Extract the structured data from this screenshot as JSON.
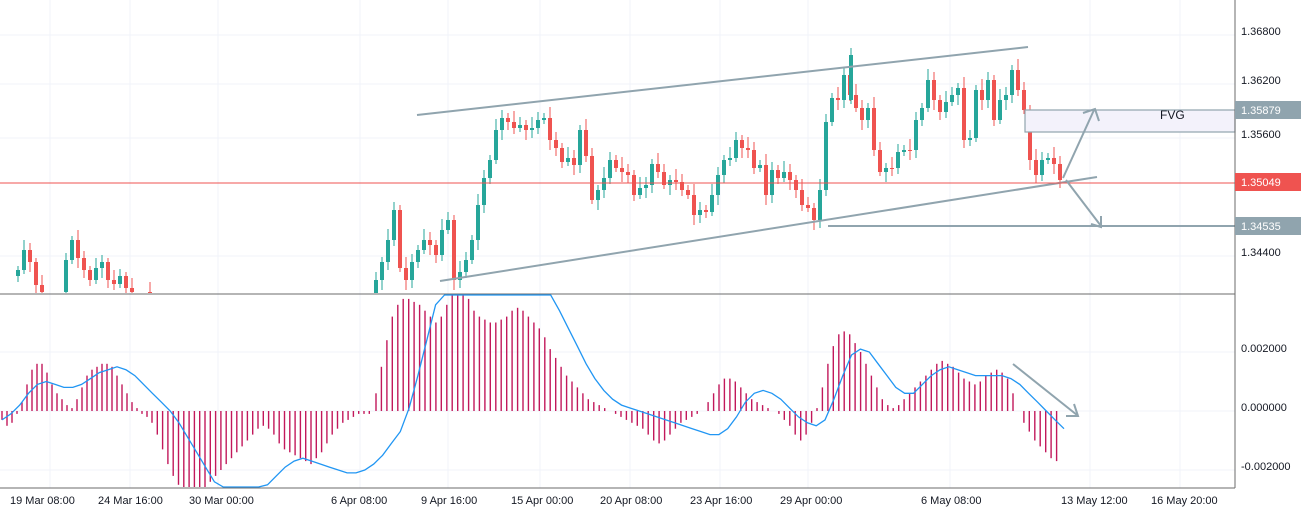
{
  "chart_data": [
    {
      "type": "candlestick",
      "title": "",
      "price_axis_ticks": [
        "1.36800",
        "1.36200",
        "1.35600",
        "1.34400"
      ],
      "time_axis_ticks": [
        "19 Mar 08:00",
        "24 Mar 16:00",
        "30 Mar 00:00",
        "6 Apr 08:00",
        "9 Apr 16:00",
        "15 Apr 00:00",
        "20 Apr 08:00",
        "23 Apr 16:00",
        "29 Apr 00:00",
        "6 May 08:00",
        "13 May 12:00",
        "16 May 20:00"
      ],
      "price_tags": [
        {
          "label": "1.35879",
          "value": 1.35879,
          "color": "#90a4ae"
        },
        {
          "label": "1.35049",
          "value": 1.35049,
          "color": "#ef5350"
        },
        {
          "label": "1.34535",
          "value": 1.34535,
          "color": "#90a4ae"
        }
      ],
      "annotation": "FVG",
      "fvg_zone": [
        1.3561,
        1.35879
      ],
      "colors": {
        "up": "#26a69a",
        "down": "#ef5350",
        "lines": "#90a4ae",
        "current_price": "#ef5350"
      },
      "candles_ohlc": [
        [
          1.3445,
          1.3452,
          1.343,
          1.344
        ],
        [
          1.3438,
          1.3458,
          1.3434,
          1.3446
        ],
        [
          1.3445,
          1.3462,
          1.344,
          1.3448
        ],
        [
          1.3448,
          1.3465,
          1.3441,
          1.3443
        ],
        [
          1.344,
          1.3446,
          1.342,
          1.3424
        ],
        [
          1.3422,
          1.3432,
          1.341,
          1.3416
        ],
        [
          1.3416,
          1.3428,
          1.3402,
          1.341
        ],
        [
          1.341,
          1.344,
          1.3404,
          1.3434
        ],
        [
          1.3434,
          1.346,
          1.343,
          1.3452
        ],
        [
          1.3452,
          1.348,
          1.3448,
          1.3474
        ],
        [
          1.3474,
          1.3498,
          1.3466,
          1.349
        ],
        [
          1.349,
          1.3502,
          1.3474,
          1.348
        ],
        [
          1.348,
          1.3488,
          1.346,
          1.3464
        ],
        [
          1.3464,
          1.3472,
          1.3452,
          1.346
        ],
        [
          1.346,
          1.347,
          1.3444,
          1.345
        ],
        [
          1.345,
          1.3458,
          1.3438,
          1.3444
        ],
        [
          1.3444,
          1.3452,
          1.343,
          1.3436
        ],
        [
          1.3436,
          1.3446,
          1.3426,
          1.344
        ],
        [
          1.344,
          1.3462,
          1.3436,
          1.3456
        ],
        [
          1.3456,
          1.3468,
          1.3444,
          1.3448
        ],
        [
          1.3448,
          1.3456,
          1.3434,
          1.3438
        ],
        [
          1.3438,
          1.3444,
          1.3424,
          1.343
        ],
        [
          1.343,
          1.3438,
          1.3418,
          1.3422
        ],
        [
          1.3422,
          1.343,
          1.341,
          1.3416
        ],
        [
          1.3416,
          1.3426,
          1.3408,
          1.342
        ],
        [
          1.342,
          1.343,
          1.3412,
          1.3418
        ],
        [
          1.3418,
          1.3424,
          1.3404,
          1.341
        ],
        [
          1.341,
          1.3418,
          1.34,
          1.3408
        ],
        [
          1.3408,
          1.3416,
          1.3398,
          1.3412
        ],
        [
          1.3412,
          1.342,
          1.3404,
          1.341
        ]
      ],
      "indicator": {
        "type": "macd",
        "axis_ticks": [
          "0.002000",
          "0.000000",
          "-0.002000"
        ],
        "axis_values": [
          0.002,
          0.0,
          -0.002
        ],
        "histogram_color": "#c2185b",
        "signal_color": "#2196f3",
        "histogram": [
          -0.0003,
          -0.0005,
          -0.0004,
          -0.0001,
          0.0003,
          0.0009,
          0.0014,
          0.0016,
          0.0016,
          0.0013,
          0.0009,
          0.0006,
          0.0004,
          0.0002,
          0.0001,
          0.0004,
          0.0008,
          0.0012,
          0.0014,
          0.0015,
          0.0016,
          0.0016,
          0.0015,
          0.0012,
          0.0009,
          0.0006,
          0.0003,
          0.0001,
          -0.0001,
          -0.0002,
          -0.0004,
          -0.0008,
          -0.0013,
          -0.0018,
          -0.0022,
          -0.0025,
          -0.0027,
          -0.0028,
          -0.0028,
          -0.0027,
          -0.0026,
          -0.0024,
          -0.0022,
          -0.002,
          -0.0018,
          -0.0016,
          -0.0014,
          -0.0012,
          -0.001,
          -0.0008,
          -0.0006,
          -0.0005,
          -0.0006,
          -0.0008,
          -0.0011,
          -0.0013,
          -0.0014,
          -0.0015,
          -0.0016,
          -0.0017,
          -0.0018,
          -0.0016,
          -0.0014,
          -0.0011,
          -0.0008,
          -0.0006,
          -0.0004,
          -0.0003,
          -0.0002,
          -0.0001,
          -0.0001,
          -0.0001,
          0.0006,
          0.0015,
          0.0024,
          0.0032,
          0.0036,
          0.0038,
          0.0038,
          0.0037,
          0.0036,
          0.0034,
          0.0032,
          0.003,
          0.0032,
          0.0036,
          0.004,
          0.0042,
          0.0041,
          0.0038,
          0.0034,
          0.0032,
          0.0031,
          0.003,
          0.003,
          0.0031,
          0.0032,
          0.0034,
          0.0035,
          0.0034,
          0.0032,
          0.003,
          0.0028,
          0.0025,
          0.0021,
          0.0018,
          0.0015,
          0.0012,
          0.001,
          0.0008,
          0.0006,
          0.0004,
          0.0003,
          0.0002,
          0.0001,
          0.0,
          -0.0001,
          -0.0002,
          -0.0003,
          -0.0004,
          -0.0005,
          -0.0006,
          -0.0008,
          -0.001,
          -0.0011,
          -0.001,
          -0.0008,
          -0.0006,
          -0.0004,
          -0.0003,
          -0.0002,
          -0.0001,
          0.0,
          0.0003,
          0.0006,
          0.0009,
          0.0011,
          0.0011,
          0.001,
          0.0008,
          0.0006,
          0.0004,
          0.0003,
          0.0002,
          0.0001,
          0.0,
          -0.0001,
          -0.0003,
          -0.0005,
          -0.0008,
          -0.001,
          -0.0008,
          -0.0004,
          0.0001,
          0.0008,
          0.0016,
          0.0022,
          0.0026,
          0.0027,
          0.0026,
          0.0023,
          0.002,
          0.0016,
          0.0012,
          0.0008,
          0.0004,
          0.0002,
          0.0001,
          0.0002,
          0.0004,
          0.0006,
          0.0008,
          0.001,
          0.0012,
          0.0014,
          0.0016,
          0.0017,
          0.0016,
          0.0015,
          0.0013,
          0.0011,
          0.001,
          0.0009,
          0.001,
          0.0012,
          0.0013,
          0.0014,
          0.0013,
          0.0011,
          0.0006,
          0.0,
          -0.0004,
          -0.0007,
          -0.001,
          -0.0012,
          -0.0014,
          -0.0016,
          -0.0017
        ],
        "signal": [
          -0.0003,
          -0.0001,
          0.0002,
          0.0006,
          0.0009,
          0.001,
          0.0009,
          0.0008,
          0.0008,
          0.0009,
          0.0011,
          0.0013,
          0.0014,
          0.0015,
          0.0014,
          0.0012,
          0.0009,
          0.0006,
          0.0003,
          0.0,
          -0.0004,
          -0.0009,
          -0.0014,
          -0.0019,
          -0.0024,
          -0.0028,
          -0.003,
          -0.0031,
          -0.003,
          -0.0028,
          -0.0025,
          -0.0022,
          -0.0019,
          -0.0017,
          -0.0016,
          -0.0017,
          -0.0018,
          -0.0019,
          -0.002,
          -0.0021,
          -0.0021,
          -0.002,
          -0.0018,
          -0.0015,
          -0.0011,
          -0.0007,
          0.0001,
          0.0012,
          0.0024,
          0.0036,
          0.0048,
          0.0056,
          0.0058,
          0.0054,
          0.0048,
          0.0042,
          0.004,
          0.004,
          0.0042,
          0.0044,
          0.0045,
          0.0044,
          0.004,
          0.0034,
          0.0028,
          0.0022,
          0.0016,
          0.0011,
          0.0007,
          0.0004,
          0.0002,
          0.0001,
          0.0,
          -0.0001,
          -0.0002,
          -0.0003,
          -0.0004,
          -0.0005,
          -0.0006,
          -0.0007,
          -0.0008,
          -0.0008,
          -0.0006,
          -0.0002,
          0.0003,
          0.0006,
          0.0007,
          0.0006,
          0.0004,
          0.0001,
          -0.0002,
          -0.0004,
          -0.0005,
          -0.0003,
          0.0004,
          0.0012,
          0.0019,
          0.0021,
          0.002,
          0.0016,
          0.0012,
          0.0008,
          0.0006,
          0.0006,
          0.0009,
          0.0012,
          0.0014,
          0.0015,
          0.0014,
          0.0013,
          0.0012,
          0.0012,
          0.0012,
          0.0012,
          0.0011,
          0.0009,
          0.0006,
          0.0003,
          0.0,
          -0.0003,
          -0.0006
        ]
      }
    }
  ]
}
